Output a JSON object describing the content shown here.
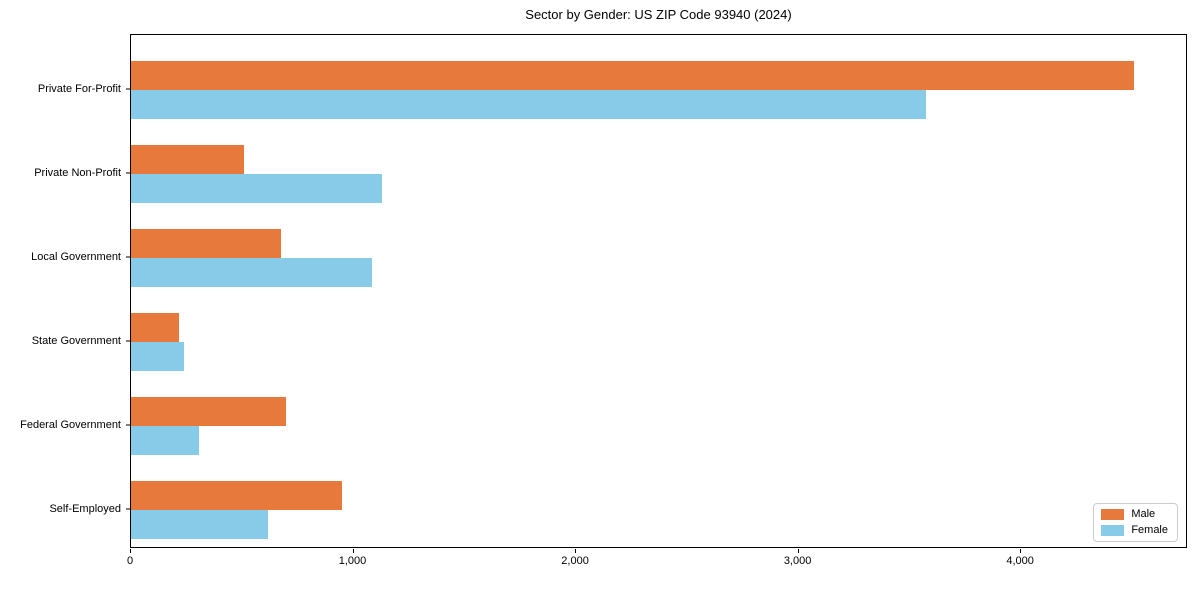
{
  "chart_data": {
    "type": "bar",
    "orientation": "horizontal",
    "title": "Sector by Gender: US ZIP Code 93940 (2024)",
    "categories": [
      "Private For-Profit",
      "Private Non-Profit",
      "Local Government",
      "State Government",
      "Federal Government",
      "Self-Employed"
    ],
    "series": [
      {
        "name": "Male",
        "color": "#e8793d",
        "values": [
          4515,
          510,
          675,
          215,
          700,
          950
        ]
      },
      {
        "name": "Female",
        "color": "#87cbe8",
        "values": [
          3580,
          1130,
          1085,
          240,
          305,
          615
        ]
      }
    ],
    "xlabel": "",
    "ylabel": "",
    "xlim": [
      0,
      4750
    ],
    "xticks": [
      0,
      1000,
      2000,
      3000,
      4000
    ],
    "xtick_labels": [
      "0",
      "1,000",
      "2,000",
      "3,000",
      "4,000"
    ],
    "legend_position": "lower right",
    "grid": false,
    "colors": {
      "background": "#ffffff",
      "spine": "#000000",
      "text": "#000000",
      "legend_border": "#cccccc"
    }
  }
}
